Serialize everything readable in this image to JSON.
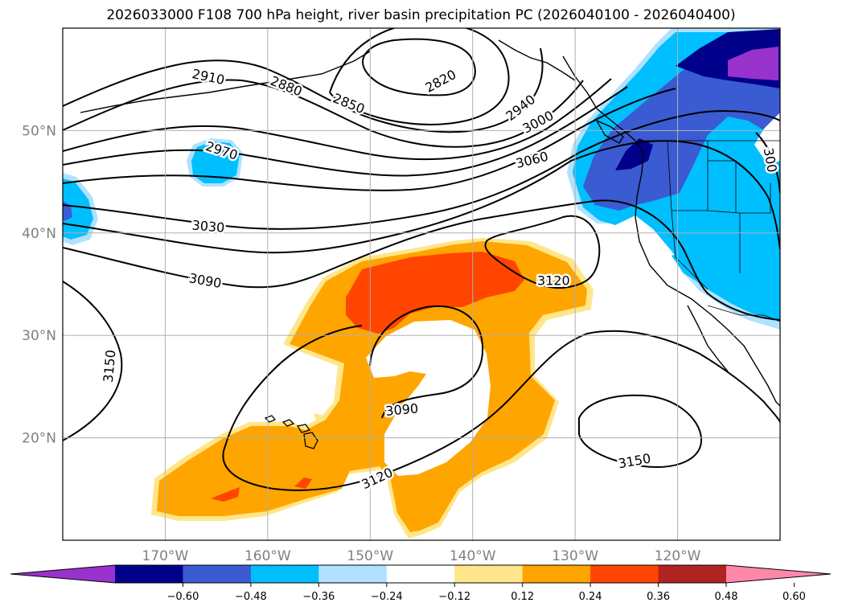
{
  "title": "2026033000 F108 700 hPa height, river basin precipitation PC (2026040100 - 2026040400)",
  "map": {
    "projection": "plate-carree",
    "lon_range": [
      -180,
      -110
    ],
    "lat_range": [
      10,
      60
    ],
    "gridlines": true,
    "lat_labels": [
      {
        "lat": 50,
        "text": "50°N"
      },
      {
        "lat": 40,
        "text": "40°N"
      },
      {
        "lat": 30,
        "text": "30°N"
      },
      {
        "lat": 20,
        "text": "20°N"
      }
    ],
    "lon_labels": [
      {
        "lon": -170,
        "text": "170°W"
      },
      {
        "lon": -160,
        "text": "160°W"
      },
      {
        "lon": -150,
        "text": "150°W"
      },
      {
        "lon": -140,
        "text": "140°W"
      },
      {
        "lon": -130,
        "text": "130°W"
      },
      {
        "lon": -120,
        "text": "120°W"
      }
    ],
    "contour_labels": [
      {
        "text": "2910",
        "lon": -165.8,
        "lat": 55.2,
        "angle": 12
      },
      {
        "text": "2880",
        "lon": -158.2,
        "lat": 54.3,
        "angle": 22
      },
      {
        "text": "2850",
        "lon": -152.1,
        "lat": 52.6,
        "angle": 22
      },
      {
        "text": "2820",
        "lon": -143.1,
        "lat": 54.8,
        "angle": -28
      },
      {
        "text": "2940",
        "lon": -135.3,
        "lat": 52.2,
        "angle": -38
      },
      {
        "text": "3000",
        "lon": -133.6,
        "lat": 50.8,
        "angle": -28
      },
      {
        "text": "2970",
        "lon": -164.5,
        "lat": 48.0,
        "angle": 18
      },
      {
        "text": "3060",
        "lon": -134.2,
        "lat": 47.1,
        "angle": -14
      },
      {
        "text": "300",
        "lon": -111.0,
        "lat": 47.1,
        "angle": 80
      },
      {
        "text": "3030",
        "lon": -165.8,
        "lat": 40.6,
        "angle": 5
      },
      {
        "text": "3090",
        "lon": -166.1,
        "lat": 35.3,
        "angle": 10
      },
      {
        "text": "3120",
        "lon": -132.1,
        "lat": 35.3,
        "angle": 0
      },
      {
        "text": "3150",
        "lon": -175.4,
        "lat": 27.0,
        "angle": -85
      },
      {
        "text": "3090",
        "lon": -146.9,
        "lat": 22.7,
        "angle": -5
      },
      {
        "text": "3120",
        "lon": -149.3,
        "lat": 16.0,
        "angle": -25
      },
      {
        "text": "3150",
        "lon": -124.2,
        "lat": 17.7,
        "angle": -10
      }
    ]
  },
  "colorbar": {
    "colors": [
      "#9932cc",
      "#00008b",
      "#3a5bd1",
      "#00bfff",
      "#b0e2ff",
      "#ffffff",
      "#ffe68a",
      "#ffa500",
      "#ff4500",
      "#b22222",
      "#ff88aa"
    ],
    "ticks": [
      "−0.60",
      "−0.48",
      "−0.36",
      "−0.24",
      "−0.12",
      "0.12",
      "0.24",
      "0.36",
      "0.48",
      "0.60"
    ],
    "extend": "both"
  },
  "legend_colors": {
    "contour": "#000000",
    "coastline": "#000000",
    "gridline": "#b0b0b0",
    "axis_label": "#808080"
  }
}
